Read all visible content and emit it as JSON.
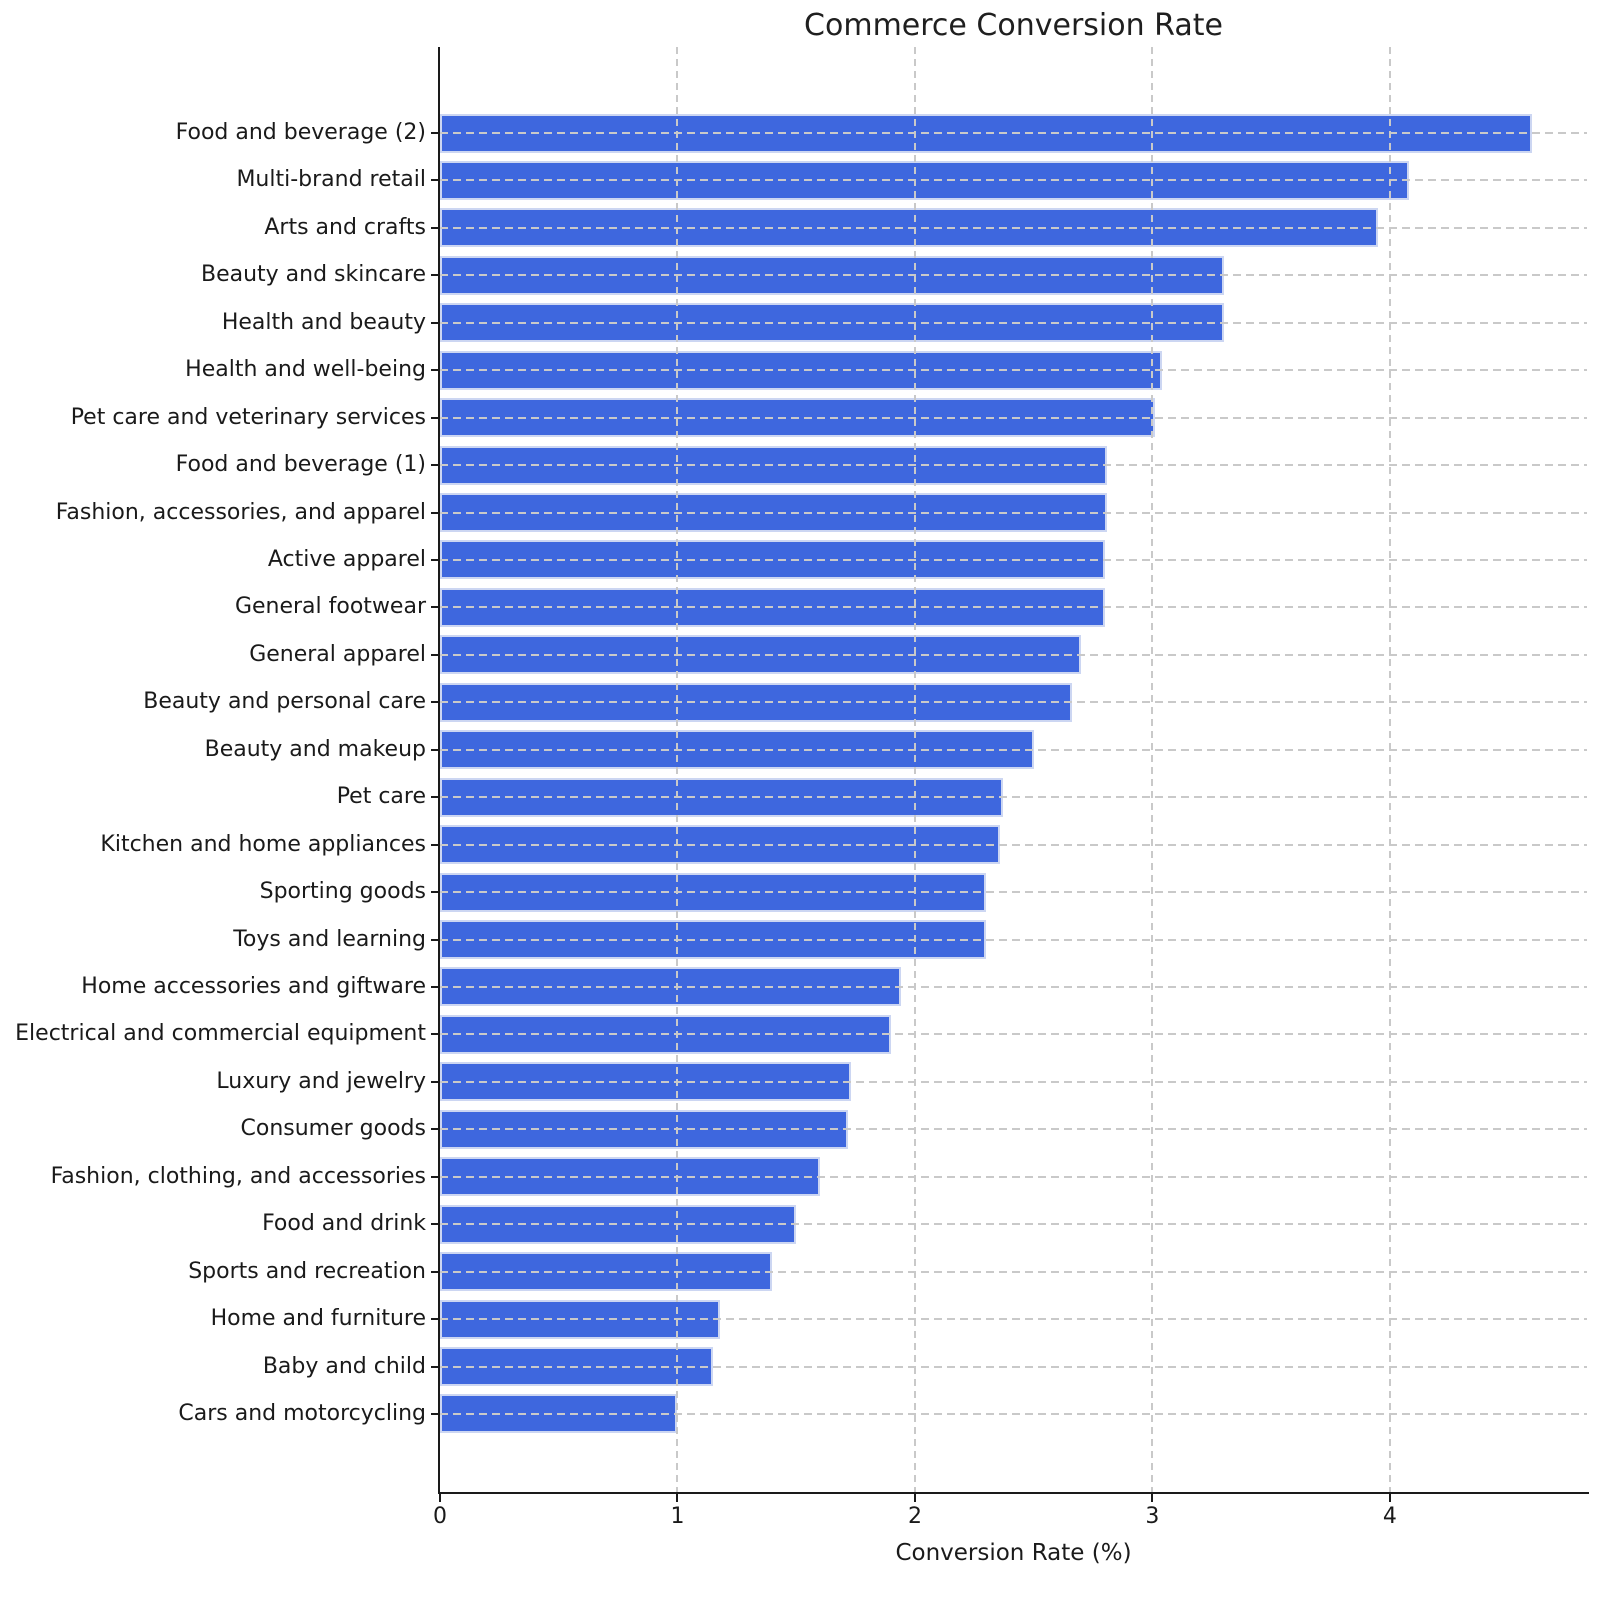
{
  "figure": {
    "title": "Commerce Conversion Rate",
    "xlabel": "Conversion Rate (%)"
  },
  "chart_data": {
    "type": "bar",
    "orientation": "horizontal",
    "title": "Commerce Conversion Rate",
    "xlabel": "Conversion Rate (%)",
    "ylabel": "",
    "xlim": [
      0,
      4.83
    ],
    "x_ticks": [
      0,
      1,
      2,
      3,
      4
    ],
    "grid": true,
    "grid_style": "dashed",
    "legend": false,
    "bar_color": "#3E67DE",
    "bar_edge_color": "#ccd6f2",
    "grid_color": "#c9c9c9",
    "categories": [
      "Food and beverage (2)",
      "Multi-brand retail",
      "Arts and crafts",
      "Beauty and skincare",
      "Health and beauty",
      "Health and well-being",
      "Pet care and veterinary services",
      "Food and beverage (1)",
      "Fashion, accessories, and apparel",
      "Active apparel",
      "General footwear",
      "General apparel",
      "Beauty and personal care",
      "Beauty and makeup",
      "Pet care",
      "Kitchen and home appliances",
      "Sporting goods",
      "Toys and learning",
      "Home accessories and giftware",
      "Electrical and commercial equipment",
      "Luxury and jewelry",
      "Consumer goods",
      "Fashion, clothing, and accessories",
      "Food and drink",
      "Sports and recreation",
      "Home and furniture",
      "Baby and child",
      "Cars and motorcycling"
    ],
    "values": [
      4.6,
      4.08,
      3.95,
      3.3,
      3.3,
      3.04,
      3.01,
      2.81,
      2.81,
      2.8,
      2.8,
      2.7,
      2.66,
      2.5,
      2.37,
      2.36,
      2.3,
      2.3,
      1.94,
      1.9,
      1.73,
      1.72,
      1.6,
      1.5,
      1.4,
      1.18,
      1.15,
      1.0
    ]
  }
}
